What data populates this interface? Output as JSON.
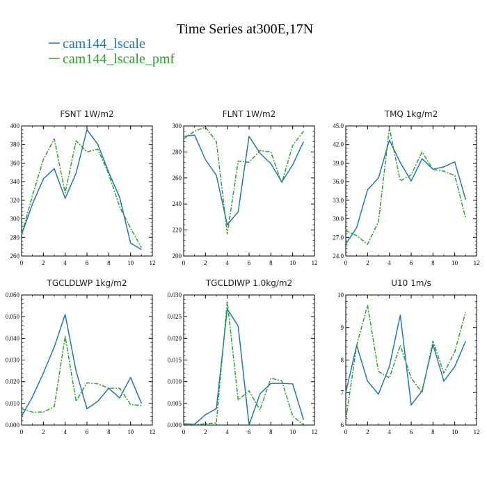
{
  "title": "Time Series at300E,17N",
  "legend": [
    {
      "name": "cam144_lscale",
      "color": "#1f77b4",
      "dash": "solid"
    },
    {
      "name": "cam144_lscale_pmf",
      "color": "#2ca02c",
      "dash": "dashed"
    }
  ],
  "chart_data": [
    {
      "type": "line",
      "title": "FSNT   1W/m2",
      "x": [
        0,
        1,
        2,
        3,
        4,
        5,
        6,
        7,
        8,
        9,
        10,
        11
      ],
      "xlim": [
        0,
        12
      ],
      "xticks": [
        "0",
        "2",
        "4",
        "6",
        "8",
        "10",
        "12"
      ],
      "ylim": [
        260,
        400
      ],
      "yticks": [
        "260",
        "280",
        "300",
        "320",
        "340",
        "360",
        "380",
        "400"
      ],
      "series": [
        {
          "name": "cam144_lscale",
          "values": [
            283,
            316,
            343,
            354,
            322,
            349,
            396,
            380,
            350,
            323,
            274,
            267
          ]
        },
        {
          "name": "cam144_lscale_pmf",
          "values": [
            283,
            325,
            364,
            386,
            328,
            384,
            372,
            375,
            348,
            313,
            290,
            269
          ]
        }
      ]
    },
    {
      "type": "line",
      "title": "FLNT   1W/m2",
      "x": [
        0,
        1,
        2,
        3,
        4,
        5,
        6,
        7,
        8,
        9,
        10,
        11
      ],
      "xlim": [
        0,
        12
      ],
      "xticks": [
        "0",
        "2",
        "4",
        "6",
        "8",
        "10",
        "12"
      ],
      "ylim": [
        200,
        300
      ],
      "yticks": [
        "200",
        "220",
        "240",
        "260",
        "280",
        "300"
      ],
      "series": [
        {
          "name": "cam144_lscale",
          "values": [
            292,
            293,
            274,
            262,
            224,
            234,
            292,
            279,
            271,
            257,
            270,
            288
          ]
        },
        {
          "name": "cam144_lscale_pmf",
          "values": [
            290,
            296,
            299,
            288,
            217,
            273,
            272,
            281,
            280,
            256,
            285,
            296
          ]
        }
      ]
    },
    {
      "type": "line",
      "title": "TMQ   1kg/m2",
      "x": [
        0,
        1,
        2,
        3,
        4,
        5,
        6,
        7,
        8,
        9,
        10,
        11
      ],
      "xlim": [
        0,
        12
      ],
      "xticks": [
        "0",
        "2",
        "4",
        "6",
        "8",
        "10",
        "12"
      ],
      "ylim": [
        24.0,
        45.0
      ],
      "yticks": [
        "24.0",
        "27.0",
        "30.0",
        "33.0",
        "36.0",
        "39.0",
        "42.0",
        "45.0"
      ],
      "series": [
        {
          "name": "cam144_lscale",
          "values": [
            25.9,
            28.6,
            34.7,
            36.6,
            42.7,
            39.1,
            36.1,
            39.7,
            38.0,
            38.4,
            39.2,
            33.1
          ]
        },
        {
          "name": "cam144_lscale_pmf",
          "values": [
            28.1,
            27.3,
            25.9,
            29.5,
            44.7,
            36.1,
            37.1,
            40.8,
            38.0,
            37.7,
            37.0,
            30.1
          ]
        }
      ]
    },
    {
      "type": "line",
      "title": "TGCLDLWP   1kg/m2",
      "x": [
        0,
        1,
        2,
        3,
        4,
        5,
        6,
        7,
        8,
        9,
        10,
        11
      ],
      "xlim": [
        0,
        12
      ],
      "xticks": [
        "0",
        "2",
        "4",
        "6",
        "8",
        "10",
        "12"
      ],
      "ylim": [
        0.0,
        0.06
      ],
      "yticks": [
        "0.000",
        "0.010",
        "0.020",
        "0.030",
        "0.040",
        "0.050",
        "0.060"
      ],
      "series": [
        {
          "name": "cam144_lscale",
          "values": [
            0.004,
            0.013,
            0.024,
            0.036,
            0.051,
            0.025,
            0.0075,
            0.011,
            0.017,
            0.0125,
            0.022,
            0.01
          ]
        },
        {
          "name": "cam144_lscale_pmf",
          "values": [
            0.0075,
            0.006,
            0.006,
            0.0085,
            0.041,
            0.011,
            0.0195,
            0.019,
            0.017,
            0.017,
            0.0095,
            0.009
          ]
        }
      ]
    },
    {
      "type": "line",
      "title": "TGCLDIWP   1.0kg/m2",
      "x": [
        0,
        1,
        2,
        3,
        4,
        5,
        6,
        7,
        8,
        9,
        10,
        11
      ],
      "xlim": [
        0,
        12
      ],
      "xticks": [
        "0",
        "2",
        "4",
        "6",
        "8",
        "10",
        "12"
      ],
      "ylim": [
        0.0,
        0.03
      ],
      "yticks": [
        "0.000",
        "0.005",
        "0.010",
        "0.015",
        "0.020",
        "0.025",
        "0.030"
      ],
      "series": [
        {
          "name": "cam144_lscale",
          "values": [
            0.0003,
            0.0002,
            0.0024,
            0.0038,
            0.0268,
            0.0228,
            0.0,
            0.0072,
            0.0096,
            0.0096,
            0.0095,
            0.0012
          ]
        },
        {
          "name": "cam144_lscale_pmf",
          "values": [
            0.0002,
            0.0001,
            0.0003,
            0.0005,
            0.0286,
            0.0058,
            0.0079,
            0.0035,
            0.0108,
            0.0102,
            0.0021,
            0.0
          ]
        }
      ]
    },
    {
      "type": "line",
      "title": "U10   1m/s",
      "x": [
        0,
        1,
        2,
        3,
        4,
        5,
        6,
        7,
        8,
        9,
        10,
        11
      ],
      "xlim": [
        0,
        12
      ],
      "xticks": [
        "0",
        "2",
        "4",
        "6",
        "8",
        "10",
        "12"
      ],
      "ylim": [
        6,
        10
      ],
      "yticks": [
        "6",
        "7",
        "8",
        "9",
        "10"
      ],
      "series": [
        {
          "name": "cam144_lscale",
          "values": [
            7.0,
            8.45,
            7.35,
            6.95,
            7.8,
            9.38,
            6.62,
            7.05,
            8.48,
            7.35,
            7.8,
            8.58
          ]
        },
        {
          "name": "cam144_lscale_pmf",
          "values": [
            6.15,
            8.45,
            9.68,
            7.65,
            7.45,
            8.45,
            7.45,
            7.0,
            8.58,
            7.6,
            8.25,
            9.48
          ]
        }
      ]
    }
  ]
}
